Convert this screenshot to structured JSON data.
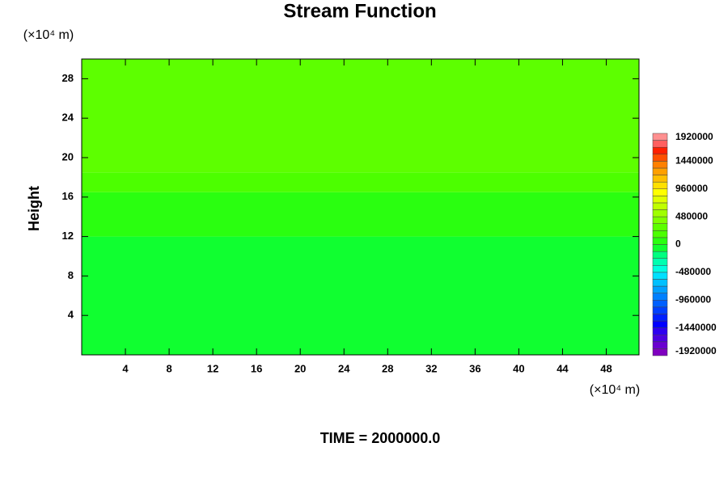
{
  "chart_data": {
    "type": "contour",
    "title": "Stream Function",
    "ylabel": "Height",
    "x_unit": "(×10⁴ m)",
    "y_unit": "(×10⁴ m)",
    "footer": "TIME = 2000000.0",
    "xlim": [
      0,
      51
    ],
    "ylim": [
      0,
      30
    ],
    "xticks": [
      4,
      8,
      12,
      16,
      20,
      24,
      28,
      32,
      36,
      40,
      44,
      48
    ],
    "yticks": [
      4,
      8,
      12,
      16,
      20,
      24,
      28
    ],
    "y": [
      0,
      12,
      16.5,
      18.5,
      30
    ],
    "values": [
      -60000,
      60000,
      180000,
      300000
    ],
    "levels": [
      -1920000,
      -1800000,
      -1680000,
      -1560000,
      -1440000,
      -1320000,
      -1200000,
      -1080000,
      -960000,
      -840000,
      -720000,
      -600000,
      -480000,
      -360000,
      -240000,
      -120000,
      0,
      120000,
      240000,
      360000,
      480000,
      600000,
      720000,
      840000,
      960000,
      1080000,
      1200000,
      1320000,
      1440000,
      1560000,
      1680000,
      1800000,
      1920000
    ],
    "colors": [
      "#7f00bf",
      "#6a00d0",
      "#4c00e0",
      "#2e00f0",
      "#0000ff",
      "#0020ff",
      "#0040ff",
      "#0060ff",
      "#0080ff",
      "#00a0ff",
      "#00c0ff",
      "#00e0ff",
      "#00ffe0",
      "#00ffb0",
      "#00ff80",
      "#10ff30",
      "#2aff10",
      "#4cff00",
      "#5dff00",
      "#80ff00",
      "#a0ff00",
      "#c0ff00",
      "#e0ff00",
      "#ffff00",
      "#ffe000",
      "#ffc000",
      "#ffa000",
      "#ff8000",
      "#ff5000",
      "#ff2000",
      "#ff6060",
      "#ff9090"
    ],
    "colorbar_ticks": [
      -1920000,
      -1440000,
      -960000,
      -480000,
      0,
      480000,
      960000,
      1440000,
      1920000
    ]
  }
}
